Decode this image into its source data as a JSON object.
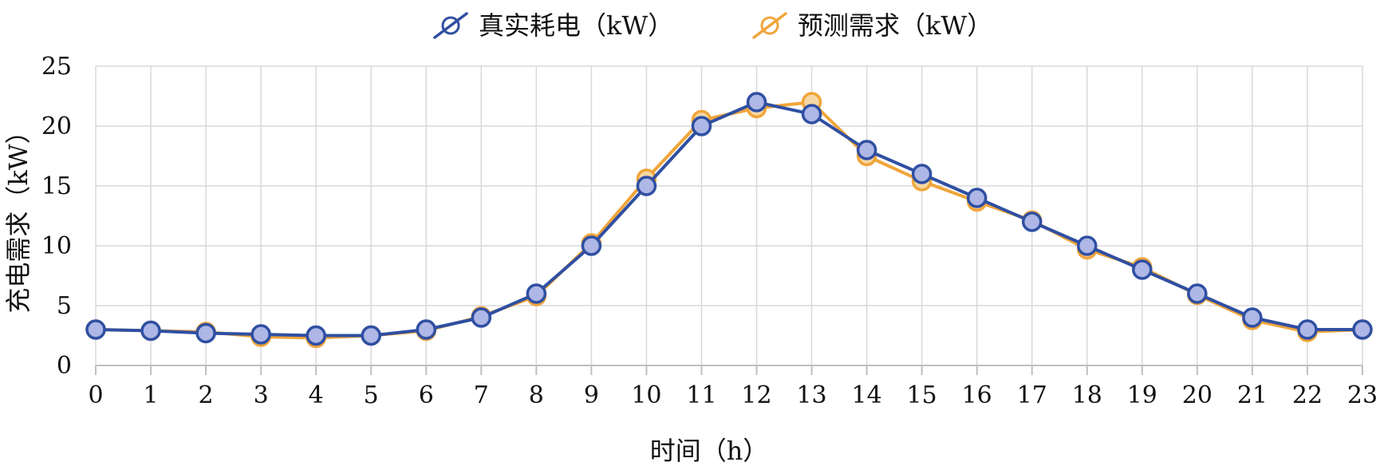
{
  "chart_data": {
    "type": "line",
    "xlabel": "时间（h）",
    "ylabel": "充电需求（kW）",
    "x": [
      0,
      1,
      2,
      3,
      4,
      5,
      6,
      7,
      8,
      9,
      10,
      11,
      12,
      13,
      14,
      15,
      16,
      17,
      18,
      19,
      20,
      21,
      22,
      23
    ],
    "ylim": [
      0,
      25
    ],
    "yticks": [
      0,
      5,
      10,
      15,
      20,
      25
    ],
    "grid": true,
    "legend_position": "top-center",
    "series": [
      {
        "name": "真实耗电（kW）",
        "color": "#2f4fa2",
        "marker_fill": "#aeb7e6",
        "values": [
          3.0,
          2.9,
          2.7,
          2.6,
          2.5,
          2.5,
          3.0,
          4.0,
          6.0,
          10.0,
          15.0,
          20.0,
          22.0,
          21.0,
          18.0,
          16.0,
          14.0,
          12.0,
          10.0,
          8.0,
          6.0,
          4.0,
          3.0,
          3.0
        ]
      },
      {
        "name": "预测需求（kW）",
        "color": "#f0a53a",
        "marker_fill": "#f7d7a4",
        "values": [
          3.0,
          2.9,
          2.8,
          2.4,
          2.3,
          2.5,
          2.9,
          4.1,
          5.8,
          10.2,
          15.6,
          20.5,
          21.5,
          22.0,
          17.5,
          15.4,
          13.7,
          12.1,
          9.7,
          8.2,
          5.9,
          3.8,
          2.8,
          3.0
        ]
      }
    ]
  }
}
